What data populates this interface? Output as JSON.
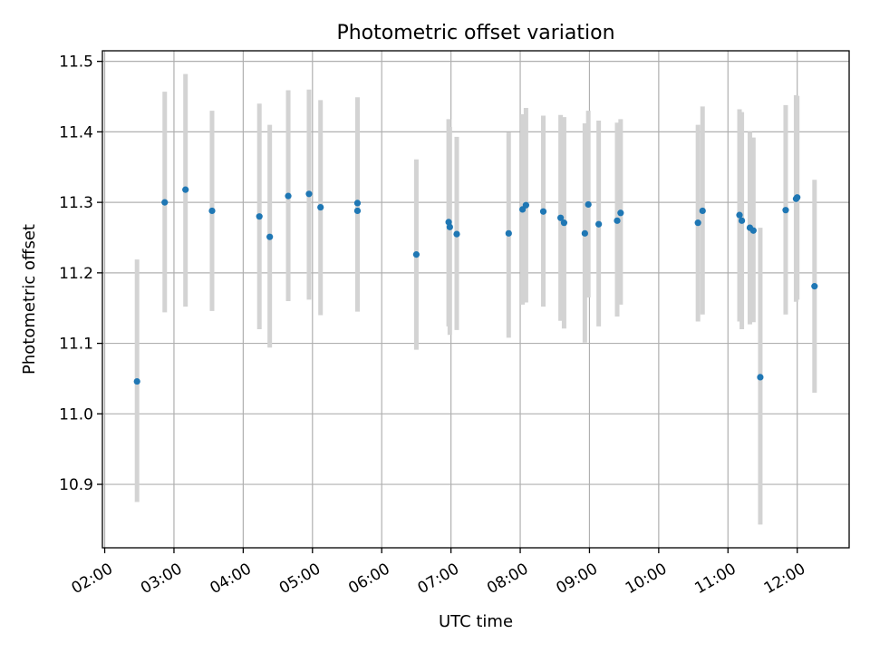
{
  "chart_data": {
    "type": "scatter",
    "title": "Photometric offset variation",
    "xlabel": "UTC time",
    "ylabel": "Photometric offset",
    "xlim": [
      "01:58",
      "12:45"
    ],
    "ylim": [
      10.81,
      11.515
    ],
    "grid": true,
    "x_ticks": [
      "02:00",
      "03:00",
      "04:00",
      "05:00",
      "06:00",
      "07:00",
      "08:00",
      "09:00",
      "10:00",
      "11:00",
      "12:00"
    ],
    "y_ticks": [
      "10.9",
      "11.0",
      "11.1",
      "11.2",
      "11.3",
      "11.4",
      "11.5"
    ],
    "colors": {
      "marker": "#1f77b4",
      "errorbar": "#d3d3d3"
    },
    "series": [
      {
        "points": [
          {
            "x": "02:28",
            "y": 11.046,
            "lo": 10.875,
            "hi": 11.219
          },
          {
            "x": "02:52",
            "y": 11.3,
            "lo": 11.144,
            "hi": 11.457
          },
          {
            "x": "03:10",
            "y": 11.318,
            "lo": 11.152,
            "hi": 11.482
          },
          {
            "x": "03:33",
            "y": 11.288,
            "lo": 11.146,
            "hi": 11.43
          },
          {
            "x": "04:14",
            "y": 11.28,
            "lo": 11.12,
            "hi": 11.44
          },
          {
            "x": "04:23",
            "y": 11.251,
            "lo": 11.094,
            "hi": 11.41
          },
          {
            "x": "04:39",
            "y": 11.309,
            "lo": 11.16,
            "hi": 11.459
          },
          {
            "x": "04:57",
            "y": 11.312,
            "lo": 11.162,
            "hi": 11.46
          },
          {
            "x": "05:07",
            "y": 11.293,
            "lo": 11.14,
            "hi": 11.445
          },
          {
            "x": "05:39",
            "y": 11.288,
            "lo": 11.145,
            "hi": 11.432
          },
          {
            "x": "05:39",
            "y": 11.299,
            "lo": 11.15,
            "hi": 11.449
          },
          {
            "x": "06:30",
            "y": 11.226,
            "lo": 11.091,
            "hi": 11.361
          },
          {
            "x": "06:58",
            "y": 11.272,
            "lo": 11.124,
            "hi": 11.418
          },
          {
            "x": "06:59",
            "y": 11.265,
            "lo": 11.112,
            "hi": 11.407
          },
          {
            "x": "07:05",
            "y": 11.255,
            "lo": 11.119,
            "hi": 11.393
          },
          {
            "x": "07:50",
            "y": 11.256,
            "lo": 11.108,
            "hi": 11.399
          },
          {
            "x": "08:02",
            "y": 11.29,
            "lo": 11.155,
            "hi": 11.425
          },
          {
            "x": "08:05",
            "y": 11.296,
            "lo": 11.158,
            "hi": 11.434
          },
          {
            "x": "08:20",
            "y": 11.287,
            "lo": 11.152,
            "hi": 11.423
          },
          {
            "x": "08:35",
            "y": 11.278,
            "lo": 11.132,
            "hi": 11.424
          },
          {
            "x": "08:38",
            "y": 11.271,
            "lo": 11.121,
            "hi": 11.421
          },
          {
            "x": "08:56",
            "y": 11.256,
            "lo": 11.101,
            "hi": 11.412
          },
          {
            "x": "08:59",
            "y": 11.297,
            "lo": 11.165,
            "hi": 11.43
          },
          {
            "x": "09:08",
            "y": 11.269,
            "lo": 11.124,
            "hi": 11.416
          },
          {
            "x": "09:24",
            "y": 11.274,
            "lo": 11.138,
            "hi": 11.413
          },
          {
            "x": "09:27",
            "y": 11.285,
            "lo": 11.155,
            "hi": 11.418
          },
          {
            "x": "10:34",
            "y": 11.271,
            "lo": 11.131,
            "hi": 11.41
          },
          {
            "x": "10:38",
            "y": 11.288,
            "lo": 11.141,
            "hi": 11.436
          },
          {
            "x": "11:10",
            "y": 11.282,
            "lo": 11.131,
            "hi": 11.432
          },
          {
            "x": "11:12",
            "y": 11.274,
            "lo": 11.12,
            "hi": 11.428
          },
          {
            "x": "11:19",
            "y": 11.264,
            "lo": 11.127,
            "hi": 11.4
          },
          {
            "x": "11:22",
            "y": 11.26,
            "lo": 11.13,
            "hi": 11.392
          },
          {
            "x": "11:28",
            "y": 11.052,
            "lo": 10.843,
            "hi": 11.264
          },
          {
            "x": "11:50",
            "y": 11.289,
            "lo": 11.141,
            "hi": 11.438
          },
          {
            "x": "11:59",
            "y": 11.305,
            "lo": 11.159,
            "hi": 11.452
          },
          {
            "x": "12:00",
            "y": 11.307,
            "lo": 11.162,
            "hi": 11.451
          },
          {
            "x": "12:15",
            "y": 11.181,
            "lo": 11.03,
            "hi": 11.332
          }
        ]
      }
    ]
  }
}
